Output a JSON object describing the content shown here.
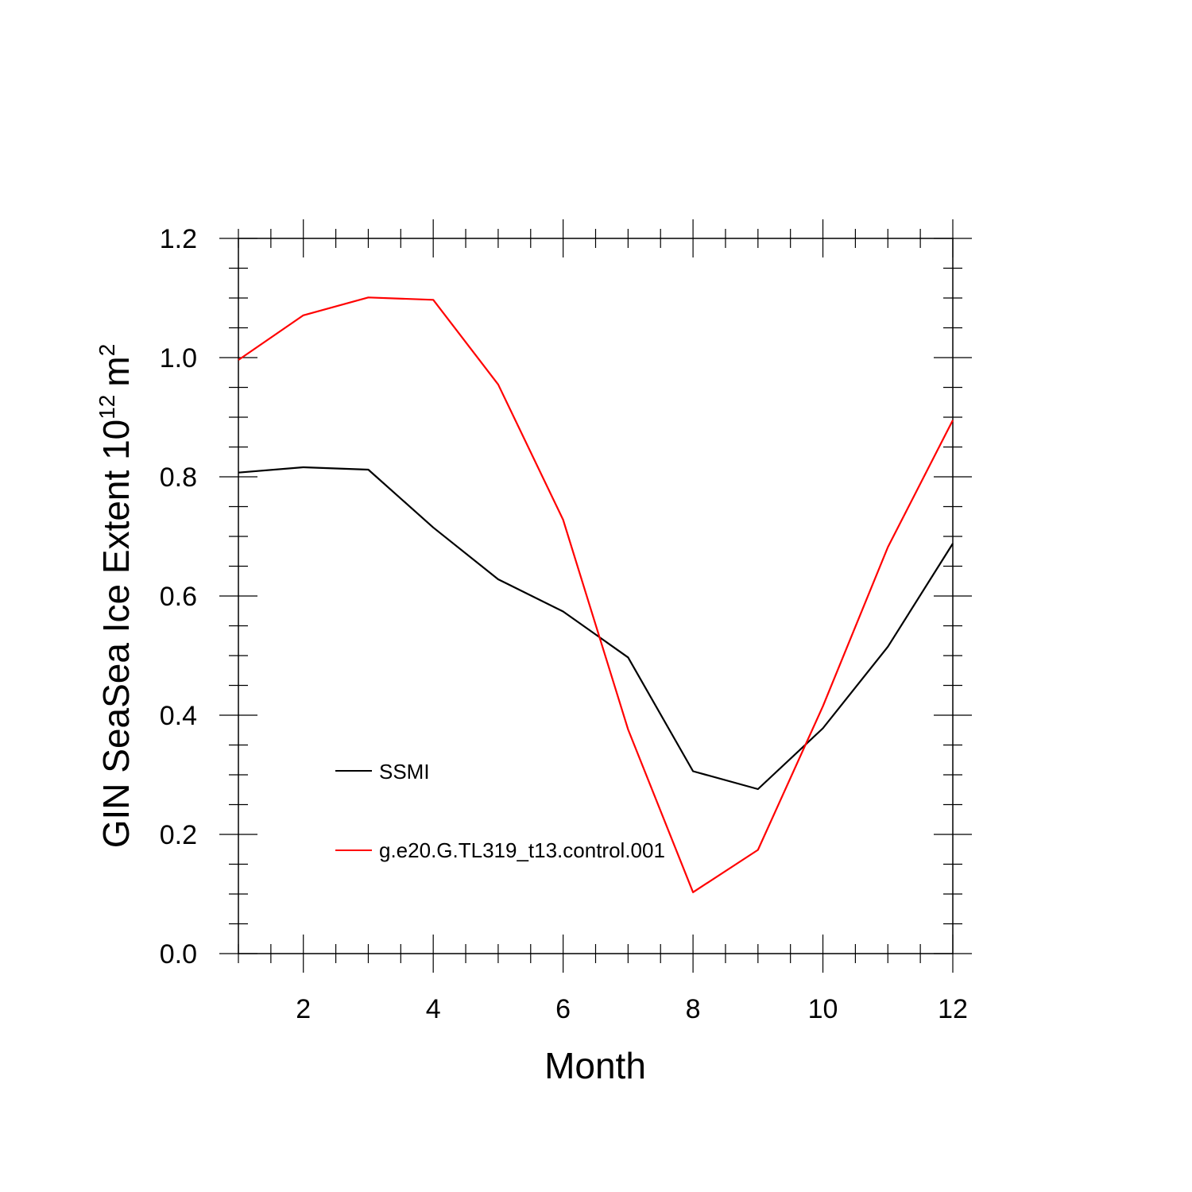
{
  "chart_data": {
    "type": "line",
    "xlabel": "Month",
    "ylabel_main": "GIN SeaSea Ice Extent 10",
    "ylabel_exp": "12",
    "ylabel_unit": "m",
    "ylabel_unit_exp": "2",
    "xlim": [
      1,
      12
    ],
    "ylim": [
      0,
      1.2
    ],
    "x_ticks": [
      2,
      4,
      6,
      8,
      10,
      12
    ],
    "y_ticks": [
      "0.0",
      "0.2",
      "0.4",
      "0.6",
      "0.8",
      "1.0",
      "1.2"
    ],
    "x": [
      1,
      2,
      3,
      4,
      5,
      6,
      7,
      8,
      9,
      10,
      11,
      12
    ],
    "series": [
      {
        "name": "SSMI",
        "color": "#000000",
        "values": [
          0.807,
          0.816,
          0.812,
          0.715,
          0.628,
          0.574,
          0.497,
          0.306,
          0.276,
          0.378,
          0.515,
          0.688
        ]
      },
      {
        "name": "g.e20.G.TL319_t13.control.001",
        "color": "#ff0000",
        "values": [
          0.996,
          1.071,
          1.101,
          1.097,
          0.955,
          0.728,
          0.376,
          0.103,
          0.174,
          0.415,
          0.682,
          0.895
        ]
      }
    ],
    "legend_position": "lower-left inside",
    "grid": false
  }
}
